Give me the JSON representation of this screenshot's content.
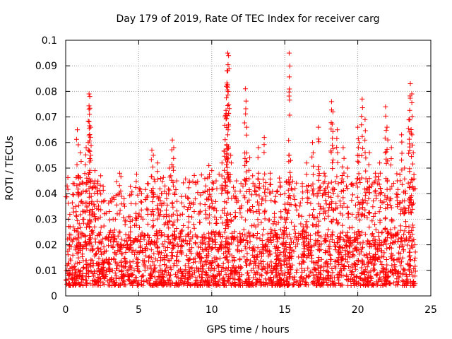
{
  "chart_data": {
    "type": "scatter",
    "title": "Day 179 of 2019, Rate Of TEC Index for receiver carg",
    "xlabel": "GPS time / hours",
    "ylabel": "ROTI / TECUs",
    "xlim": [
      0,
      25
    ],
    "ylim": [
      0,
      0.1
    ],
    "x_ticks": [
      0,
      5,
      10,
      15,
      20,
      25
    ],
    "y_ticks": [
      0,
      0.01,
      0.02,
      0.03,
      0.04,
      0.05,
      0.06,
      0.07,
      0.08,
      0.09,
      0.1
    ],
    "x_tick_labels": [
      "0",
      "5",
      "10",
      "15",
      "20",
      "25"
    ],
    "y_tick_labels": [
      "0",
      "0.01",
      "0.02",
      "0.03",
      "0.04",
      "0.05",
      "0.06",
      "0.07",
      "0.08",
      "0.09",
      "0.1"
    ],
    "grid": true,
    "marker": "+",
    "color": "#ff0000",
    "series": [
      {
        "name": "ROTI",
        "points": [
          [
            0.1,
            0.012
          ],
          [
            0.2,
            0.03
          ],
          [
            0.3,
            0.027
          ],
          [
            0.5,
            0.044
          ],
          [
            0.7,
            0.035
          ],
          [
            0.8,
            0.065
          ],
          [
            1.0,
            0.056
          ],
          [
            1.2,
            0.041
          ],
          [
            1.4,
            0.058
          ],
          [
            1.6,
            0.079
          ],
          [
            1.65,
            0.078
          ],
          [
            1.6,
            0.073
          ],
          [
            1.7,
            0.062
          ],
          [
            1.8,
            0.045
          ],
          [
            2.0,
            0.049
          ],
          [
            2.2,
            0.04
          ],
          [
            2.4,
            0.047
          ],
          [
            2.6,
            0.037
          ],
          [
            3.0,
            0.033
          ],
          [
            3.4,
            0.03
          ],
          [
            3.7,
            0.048
          ],
          [
            4.0,
            0.038
          ],
          [
            4.4,
            0.031
          ],
          [
            4.8,
            0.036
          ],
          [
            5.2,
            0.04
          ],
          [
            5.6,
            0.044
          ],
          [
            5.9,
            0.057
          ],
          [
            6.0,
            0.055
          ],
          [
            6.3,
            0.052
          ],
          [
            6.5,
            0.046
          ],
          [
            6.9,
            0.04
          ],
          [
            7.1,
            0.05
          ],
          [
            7.3,
            0.061
          ],
          [
            7.4,
            0.058
          ],
          [
            7.6,
            0.045
          ],
          [
            8.0,
            0.032
          ],
          [
            8.4,
            0.038
          ],
          [
            8.8,
            0.033
          ],
          [
            9.2,
            0.036
          ],
          [
            9.6,
            0.043
          ],
          [
            9.8,
            0.051
          ],
          [
            10.0,
            0.049
          ],
          [
            10.3,
            0.045
          ],
          [
            10.7,
            0.052
          ],
          [
            10.9,
            0.07
          ],
          [
            11.0,
            0.082
          ],
          [
            11.05,
            0.088
          ],
          [
            11.1,
            0.095
          ],
          [
            11.15,
            0.094
          ],
          [
            11.1,
            0.063
          ],
          [
            11.3,
            0.055
          ],
          [
            11.6,
            0.041
          ],
          [
            12.0,
            0.044
          ],
          [
            12.3,
            0.081
          ],
          [
            12.4,
            0.066
          ],
          [
            12.6,
            0.054
          ],
          [
            12.8,
            0.047
          ],
          [
            13.2,
            0.058
          ],
          [
            13.6,
            0.062
          ],
          [
            14.0,
            0.048
          ],
          [
            14.3,
            0.037
          ],
          [
            14.7,
            0.043
          ],
          [
            15.0,
            0.04
          ],
          [
            15.1,
            0.03
          ],
          [
            15.3,
            0.095
          ],
          [
            15.4,
            0.053
          ],
          [
            15.7,
            0.042
          ],
          [
            16.2,
            0.044
          ],
          [
            16.5,
            0.052
          ],
          [
            16.9,
            0.06
          ],
          [
            17.3,
            0.066
          ],
          [
            17.7,
            0.048
          ],
          [
            18.0,
            0.044
          ],
          [
            18.2,
            0.076
          ],
          [
            18.3,
            0.072
          ],
          [
            18.6,
            0.065
          ],
          [
            19.0,
            0.058
          ],
          [
            19.3,
            0.05
          ],
          [
            19.6,
            0.044
          ],
          [
            20.0,
            0.066
          ],
          [
            20.1,
            0.06
          ],
          [
            20.3,
            0.077
          ],
          [
            20.5,
            0.069
          ],
          [
            20.8,
            0.056
          ],
          [
            21.2,
            0.048
          ],
          [
            21.5,
            0.052
          ],
          [
            21.9,
            0.074
          ],
          [
            22.0,
            0.066
          ],
          [
            22.3,
            0.058
          ],
          [
            22.7,
            0.045
          ],
          [
            23.0,
            0.063
          ],
          [
            23.2,
            0.05
          ],
          [
            23.5,
            0.069
          ],
          [
            23.6,
            0.083
          ],
          [
            23.7,
            0.079
          ],
          [
            23.8,
            0.056
          ],
          [
            23.9,
            0.02
          ]
        ],
        "baseline_band": {
          "low": 0.004,
          "core_high": 0.025,
          "spike_high": 0.045,
          "x_start": 0,
          "x_end": 23.95
        }
      }
    ]
  }
}
